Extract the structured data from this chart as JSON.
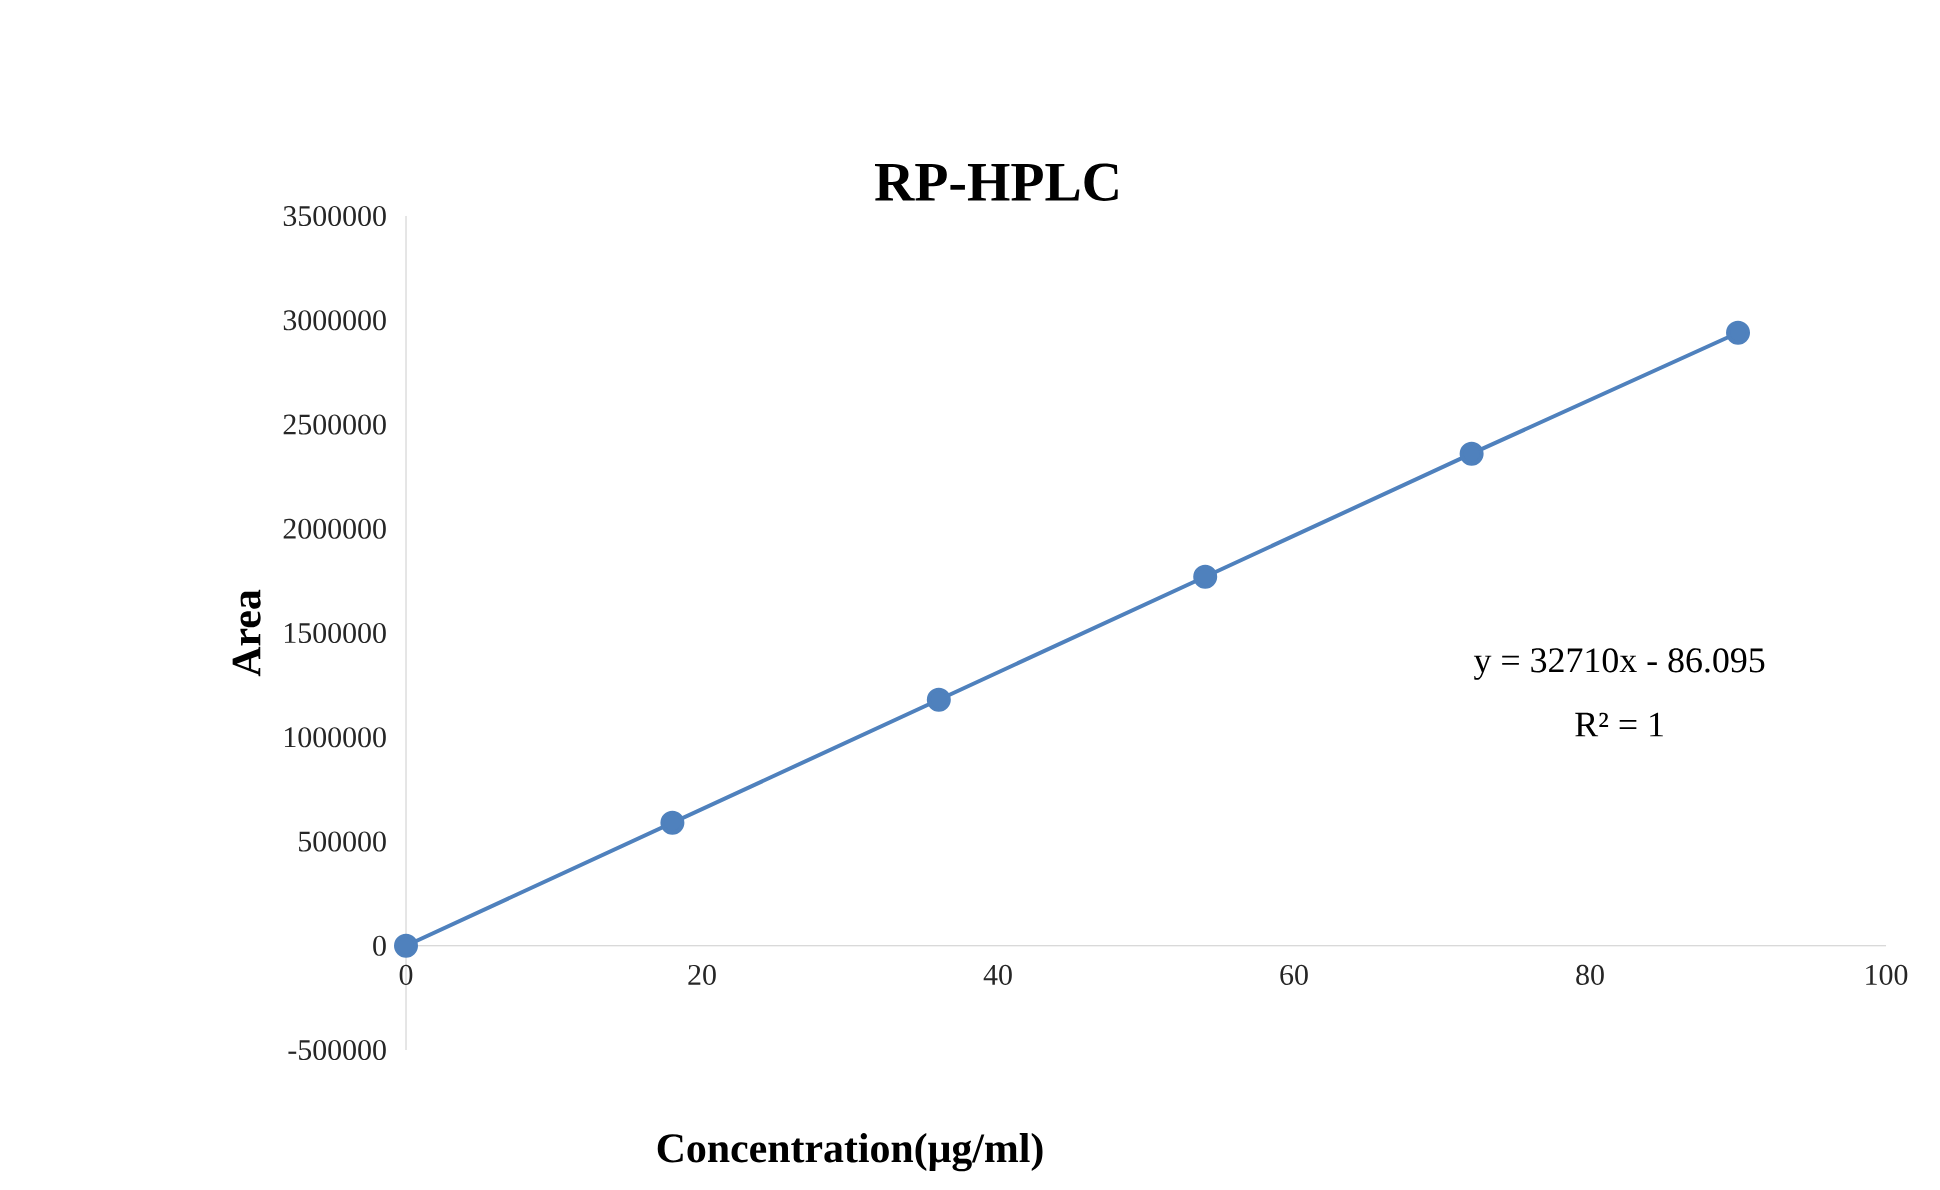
{
  "chart_data": {
    "type": "line",
    "title": "RP-HPLC",
    "xlabel": "Concentration(μg/ml)",
    "ylabel": "Area",
    "x": [
      0,
      18,
      36,
      54,
      72,
      90
    ],
    "series": [
      {
        "color": "#4f81bd",
        "values": [
          0,
          590000,
          1180000,
          1770000,
          2360000,
          2940000
        ]
      }
    ],
    "marker": "circle",
    "line_style": "solid",
    "grid": false,
    "xlim": [
      0,
      100
    ],
    "xticks": [
      0,
      20,
      40,
      60,
      80,
      100
    ],
    "ylim": [
      -500000,
      3500000
    ],
    "yticks": [
      -500000,
      0,
      500000,
      1000000,
      1500000,
      2000000,
      2500000,
      3000000,
      3500000
    ],
    "annotations": [
      "y = 32710x - 86.095",
      "R² = 1"
    ]
  }
}
